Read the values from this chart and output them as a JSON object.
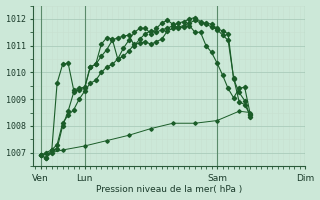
{
  "background_color": "#cce8d8",
  "grid_color_major": "#aaccbb",
  "grid_color_minor": "#c8e0d0",
  "line_color": "#1a5c28",
  "xlabel": "Pression niveau de la mer( hPa )",
  "ylim": [
    1006.5,
    1012.5
  ],
  "yticks": [
    1007,
    1008,
    1009,
    1010,
    1011,
    1012
  ],
  "xlim": [
    -8,
    232
  ],
  "vline_color": "#5a8a6a",
  "vlines_x": [
    0,
    48,
    192,
    288
  ],
  "series": [
    {
      "x": [
        0,
        6,
        12,
        18,
        24,
        30,
        36,
        42,
        48,
        54,
        60,
        66,
        72,
        78,
        84,
        90,
        96,
        102,
        108,
        114,
        120,
        126,
        132,
        138,
        144,
        150,
        156,
        162,
        168,
        174,
        180,
        186,
        192,
        198,
        204,
        210,
        216,
        222,
        228
      ],
      "y": [
        1006.9,
        1006.8,
        1007.0,
        1009.6,
        1010.3,
        1010.35,
        1009.35,
        1009.4,
        1009.45,
        1010.2,
        1010.3,
        1010.6,
        1010.85,
        1011.2,
        1011.3,
        1011.35,
        1011.4,
        1011.0,
        1011.25,
        1011.45,
        1011.55,
        1011.5,
        1011.6,
        1011.65,
        1011.75,
        1011.85,
        1011.9,
        1012.0,
        1012.05,
        1011.9,
        1011.8,
        1011.7,
        1011.6,
        1011.4,
        1011.2,
        1009.8,
        1008.9,
        1008.8,
        1008.4
      ]
    },
    {
      "x": [
        0,
        6,
        12,
        18,
        24,
        30,
        36,
        42,
        48,
        54,
        60,
        66,
        72,
        78,
        84,
        90,
        96,
        102,
        108,
        114,
        120,
        126,
        132,
        138,
        144,
        150,
        156,
        162,
        168,
        174,
        180,
        186,
        192,
        198,
        204,
        210,
        216,
        222,
        228
      ],
      "y": [
        1006.9,
        1006.8,
        1007.1,
        1007.15,
        1008.0,
        1008.55,
        1009.25,
        1009.35,
        1009.4,
        1010.2,
        1010.3,
        1011.05,
        1011.3,
        1011.25,
        1010.5,
        1010.9,
        1011.2,
        1011.5,
        1011.65,
        1011.65,
        1011.45,
        1011.65,
        1011.85,
        1011.95,
        1011.8,
        1011.65,
        1011.7,
        1011.75,
        1011.5,
        1011.5,
        1011.0,
        1010.75,
        1010.35,
        1009.9,
        1009.4,
        1009.05,
        1009.4,
        1009.45,
        1008.45
      ]
    },
    {
      "x": [
        0,
        6,
        12,
        18,
        24,
        30,
        36,
        42,
        48,
        54,
        60,
        66,
        72,
        78,
        84,
        90,
        96,
        102,
        108,
        114,
        120,
        126,
        132,
        138,
        144,
        150,
        156,
        162,
        168,
        174,
        180,
        186,
        192,
        198,
        204,
        210,
        216,
        222,
        228
      ],
      "y": [
        1006.9,
        1007.0,
        1007.1,
        1007.3,
        1008.1,
        1008.4,
        1008.6,
        1009.0,
        1009.3,
        1009.6,
        1009.7,
        1010.0,
        1010.2,
        1010.3,
        1010.5,
        1010.6,
        1010.8,
        1011.05,
        1011.1,
        1011.15,
        1011.05,
        1011.15,
        1011.25,
        1011.55,
        1011.65,
        1011.7,
        1011.75,
        1011.85,
        1011.95,
        1011.85,
        1011.85,
        1011.8,
        1011.65,
        1011.55,
        1011.45,
        1009.75,
        1009.25,
        1008.95,
        1008.35
      ]
    },
    {
      "x": [
        0,
        24,
        48,
        72,
        96,
        120,
        144,
        168,
        192,
        216,
        228
      ],
      "y": [
        1006.9,
        1007.1,
        1007.25,
        1007.45,
        1007.65,
        1007.9,
        1008.1,
        1008.1,
        1008.2,
        1008.55,
        1008.5
      ]
    }
  ],
  "xtick_day_x": [
    0,
    48,
    192,
    288
  ],
  "xtick_day_labels": [
    "Ven",
    "Lun",
    "Sam",
    "Dim"
  ],
  "figsize": [
    3.2,
    2.0
  ],
  "dpi": 100
}
